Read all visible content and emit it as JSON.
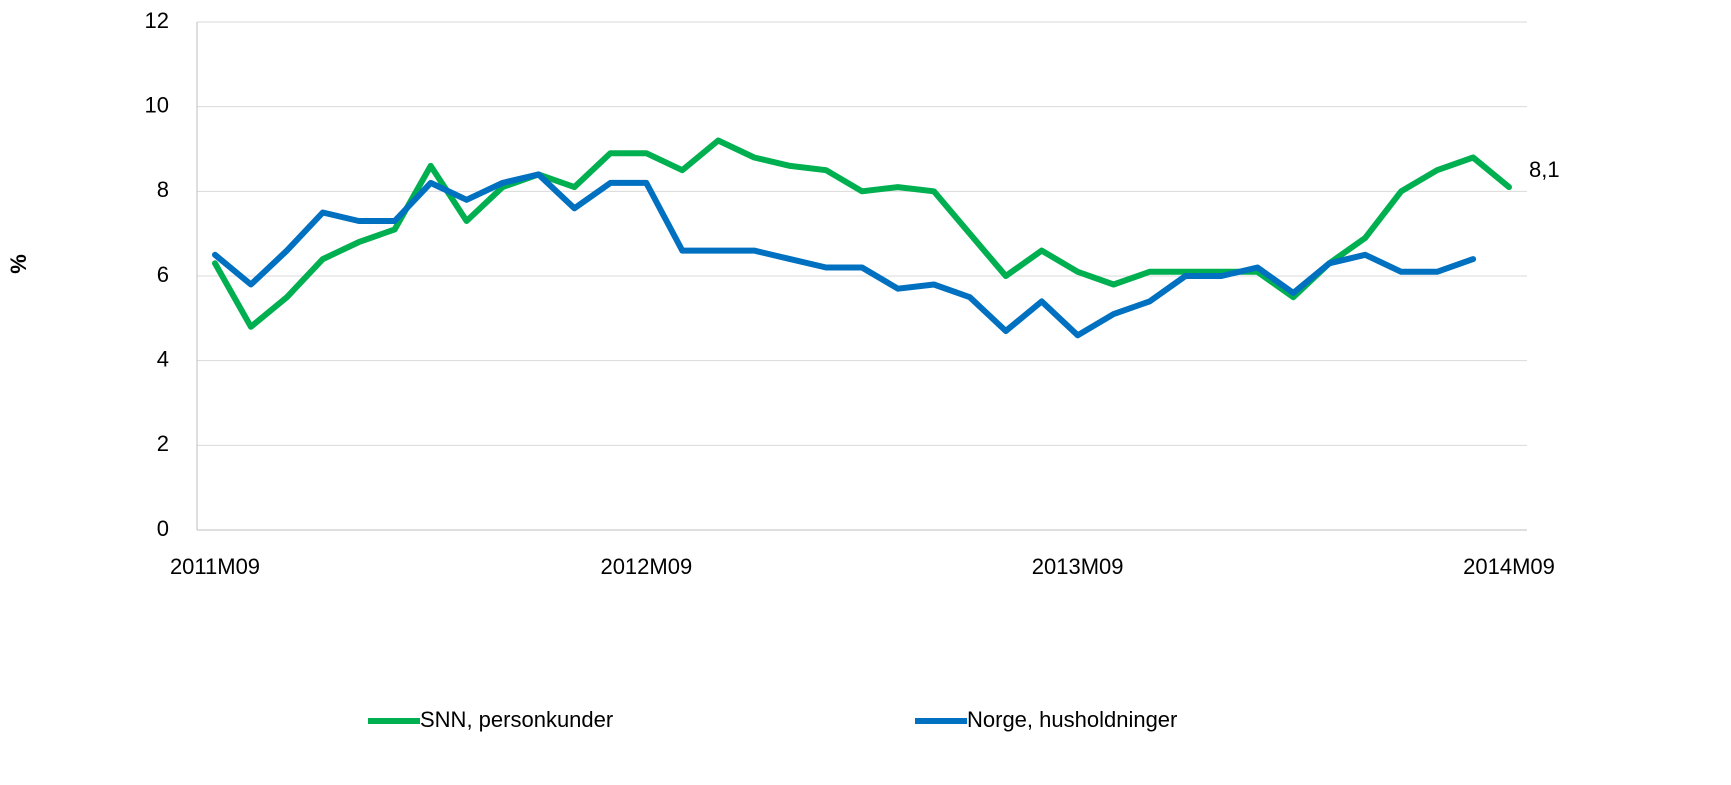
{
  "chart_data": {
    "type": "line",
    "y_label": "%",
    "categories": [
      "2011M09",
      null,
      null,
      null,
      null,
      null,
      null,
      null,
      null,
      null,
      null,
      null,
      "2012M09",
      null,
      null,
      null,
      null,
      null,
      null,
      null,
      null,
      null,
      null,
      null,
      "2013M09",
      null,
      null,
      null,
      null,
      null,
      null,
      null,
      null,
      null,
      null,
      null,
      "2014M09"
    ],
    "series": [
      {
        "name": "SNN, personkunder",
        "color": "#00b050",
        "values": [
          6.3,
          4.8,
          5.5,
          6.4,
          6.8,
          7.1,
          8.6,
          7.3,
          8.1,
          8.4,
          8.1,
          8.9,
          8.9,
          8.5,
          9.2,
          8.8,
          8.6,
          8.5,
          8.0,
          8.1,
          8.0,
          7.0,
          6.0,
          6.6,
          6.1,
          5.8,
          6.1,
          6.1,
          6.1,
          6.1,
          5.5,
          6.3,
          6.9,
          8.0,
          8.5,
          8.8,
          8.1
        ],
        "value_labels": [
          null,
          null,
          null,
          null,
          null,
          null,
          null,
          null,
          null,
          null,
          null,
          null,
          null,
          null,
          null,
          null,
          null,
          null,
          null,
          null,
          null,
          null,
          null,
          null,
          null,
          null,
          null,
          null,
          null,
          null,
          null,
          null,
          null,
          null,
          null,
          null,
          "8,1"
        ]
      },
      {
        "name": "Norge, husholdninger",
        "color": "#0070c0",
        "values": [
          6.5,
          5.8,
          6.6,
          7.5,
          7.3,
          7.3,
          8.2,
          7.8,
          8.2,
          8.4,
          7.6,
          8.2,
          8.2,
          6.6,
          6.6,
          6.6,
          6.4,
          6.2,
          6.2,
          5.7,
          5.8,
          5.5,
          4.7,
          5.4,
          4.6,
          5.1,
          5.4,
          6.0,
          6.0,
          6.2,
          5.6,
          6.3,
          6.5,
          6.1,
          6.1,
          6.4,
          null
        ]
      }
    ],
    "ylim": [
      0,
      12
    ],
    "yticks": [
      0,
      2,
      4,
      6,
      8,
      10,
      12
    ],
    "grid": true,
    "legend": "bottom"
  }
}
